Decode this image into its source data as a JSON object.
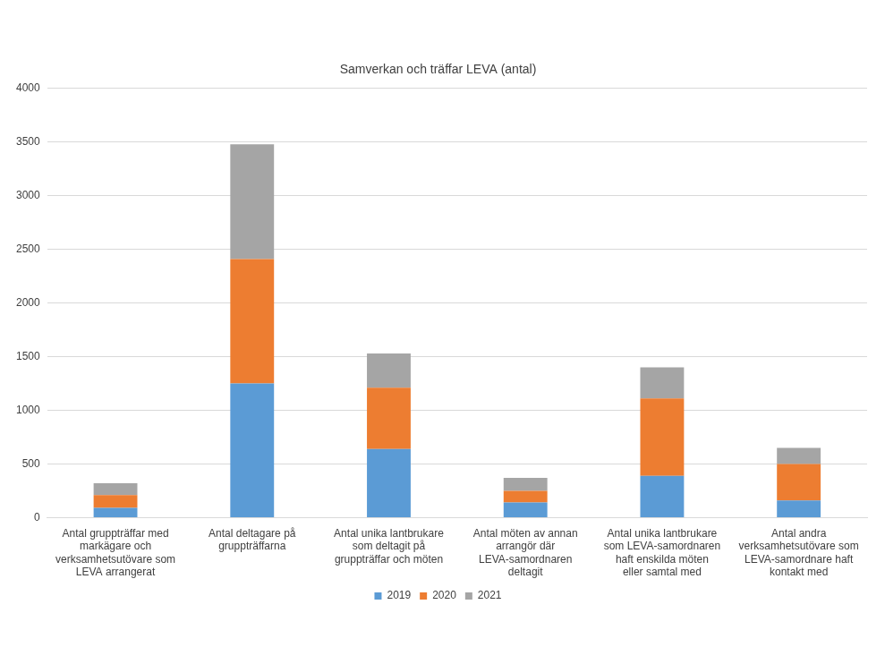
{
  "chart_data": {
    "type": "bar",
    "title": "Samverkan och träffar LEVA (antal)",
    "categories": [
      "Antal gruppträffar med markägare och verksamhetsutövare som LEVA arrangerat",
      "Antal deltagare på gruppträffarna",
      "Antal unika lantbrukare som deltagit på gruppträffar och möten",
      "Antal möten av annan arrangör där LEVA-samordnaren deltagit",
      "Antal unika lantbrukare som LEVA-samordnaren haft enskilda möten eller samtal med",
      "Antal andra verksamhetsutövare som LEVA-samordnare haft kontakt med"
    ],
    "series": [
      {
        "name": "2019",
        "color": "#5b9bd5",
        "values": [
          90,
          1250,
          640,
          140,
          390,
          160
        ]
      },
      {
        "name": "2020",
        "color": "#ed7d31",
        "values": [
          120,
          1160,
          570,
          110,
          720,
          340
        ]
      },
      {
        "name": "2021",
        "color": "#a5a5a5",
        "values": [
          110,
          1070,
          320,
          120,
          290,
          150
        ]
      }
    ],
    "stacked": true,
    "ylim": [
      0,
      4000
    ],
    "yticks": [
      0,
      500,
      1000,
      1500,
      2000,
      2500,
      3000,
      3500,
      4000
    ],
    "grid": true,
    "legend": "bottom"
  }
}
